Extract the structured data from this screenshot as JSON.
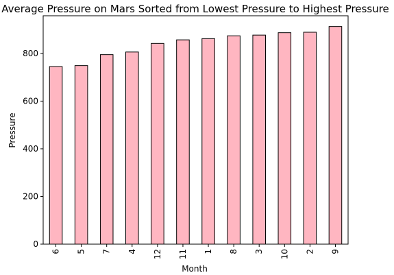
{
  "chart_data": {
    "type": "bar",
    "title": "Average Pressure on Mars Sorted from Lowest Pressure to Highest Pressure",
    "xlabel": "Month",
    "ylabel": "Pressure",
    "categories": [
      "6",
      "5",
      "7",
      "4",
      "12",
      "11",
      "1",
      "8",
      "3",
      "10",
      "2",
      "9"
    ],
    "values": [
      745,
      749,
      795,
      806,
      842,
      857,
      862,
      874,
      877,
      887,
      889,
      913
    ],
    "ylim": [
      0,
      958
    ],
    "yticks": [
      "0",
      "200",
      "400",
      "600",
      "800"
    ],
    "grid": false,
    "colors": {
      "bar_fill": "#ffb6c1",
      "bar_edge": "#000000"
    }
  }
}
